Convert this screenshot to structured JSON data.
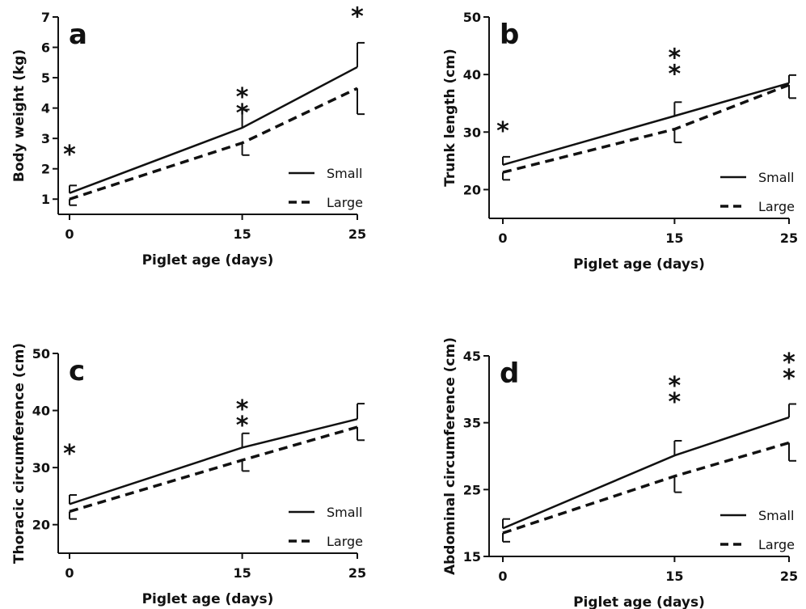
{
  "chart_data": [
    {
      "type": "line",
      "panel_label": "a",
      "xlabel": "Piglet age (days)",
      "ylabel": "Body weight (kg)",
      "x": [
        0,
        15,
        25
      ],
      "ylim": [
        0.5,
        7
      ],
      "yticks": [
        1,
        2,
        3,
        4,
        5,
        6,
        7
      ],
      "xticks": [
        0,
        15,
        25
      ],
      "series": [
        {
          "name": "Small",
          "style": "solid",
          "values": [
            1.2,
            3.35,
            5.35
          ],
          "error": [
            0.25,
            0.6,
            0.8
          ],
          "error_dir": "up"
        },
        {
          "name": "Large",
          "style": "dashed",
          "values": [
            1.0,
            2.85,
            4.65
          ],
          "error": [
            0.2,
            0.4,
            0.85
          ],
          "error_dir": "down"
        }
      ],
      "annotations": [
        {
          "x": 0,
          "y": 2.2,
          "text": "*"
        },
        {
          "x": 15,
          "y": 4.1,
          "text": "**"
        },
        {
          "x": 25,
          "y": 6.75,
          "text": "*"
        }
      ],
      "legend": "bottom-right"
    },
    {
      "type": "line",
      "panel_label": "b",
      "xlabel": "Piglet age (days)",
      "ylabel": "Trunk length (cm)",
      "x": [
        0,
        15,
        25
      ],
      "ylim": [
        15,
        50
      ],
      "yticks": [
        20,
        30,
        40,
        50
      ],
      "xticks": [
        0,
        15,
        25
      ],
      "series": [
        {
          "name": "Small",
          "style": "solid",
          "values": [
            24.3,
            32.8,
            38.5
          ],
          "error": [
            1.4,
            2.4,
            1.4
          ],
          "error_dir": "up"
        },
        {
          "name": "Large",
          "style": "dashed",
          "values": [
            23.0,
            30.5,
            38.2
          ],
          "error": [
            1.3,
            2.3,
            2.3
          ],
          "error_dir": "down"
        }
      ],
      "annotations": [
        {
          "x": 0,
          "y": 28.8,
          "text": "*"
        },
        {
          "x": 15,
          "y": 41.5,
          "text": "**"
        }
      ],
      "legend": "bottom-right"
    },
    {
      "type": "line",
      "panel_label": "c",
      "xlabel": "Piglet age (days)",
      "ylabel": "Thoracic circumference (cm)",
      "x": [
        0,
        15,
        25
      ],
      "ylim": [
        15,
        50
      ],
      "yticks": [
        20,
        30,
        40,
        50
      ],
      "xticks": [
        0,
        15,
        25
      ],
      "series": [
        {
          "name": "Small",
          "style": "solid",
          "values": [
            23.6,
            33.5,
            38.5
          ],
          "error": [
            1.6,
            2.5,
            2.7
          ],
          "error_dir": "up"
        },
        {
          "name": "Large",
          "style": "dashed",
          "values": [
            22.3,
            31.3,
            37.1
          ],
          "error": [
            1.3,
            1.9,
            2.3
          ],
          "error_dir": "down"
        }
      ],
      "annotations": [
        {
          "x": 0,
          "y": 31,
          "text": "*"
        },
        {
          "x": 15,
          "y": 38.8,
          "text": "**"
        }
      ],
      "legend": "bottom-right"
    },
    {
      "type": "line",
      "panel_label": "d",
      "xlabel": "Piglet age (days)",
      "ylabel": "Abdominal circumference (cm)",
      "x": [
        0,
        15,
        25
      ],
      "ylim": [
        15,
        45
      ],
      "yticks": [
        15,
        25,
        35,
        45
      ],
      "xticks": [
        0,
        15,
        25
      ],
      "series": [
        {
          "name": "Small",
          "style": "solid",
          "values": [
            19.2,
            30.1,
            35.8
          ],
          "error": [
            1.4,
            2.2,
            2.0
          ],
          "error_dir": "up"
        },
        {
          "name": "Large",
          "style": "dashed",
          "values": [
            18.5,
            27.0,
            32.0
          ],
          "error": [
            1.3,
            2.4,
            2.7
          ],
          "error_dir": "down"
        }
      ],
      "annotations": [
        {
          "x": 15,
          "y": 39.3,
          "text": "**"
        },
        {
          "x": 25,
          "y": 42.8,
          "text": "**"
        }
      ],
      "legend": "bottom-right"
    }
  ]
}
